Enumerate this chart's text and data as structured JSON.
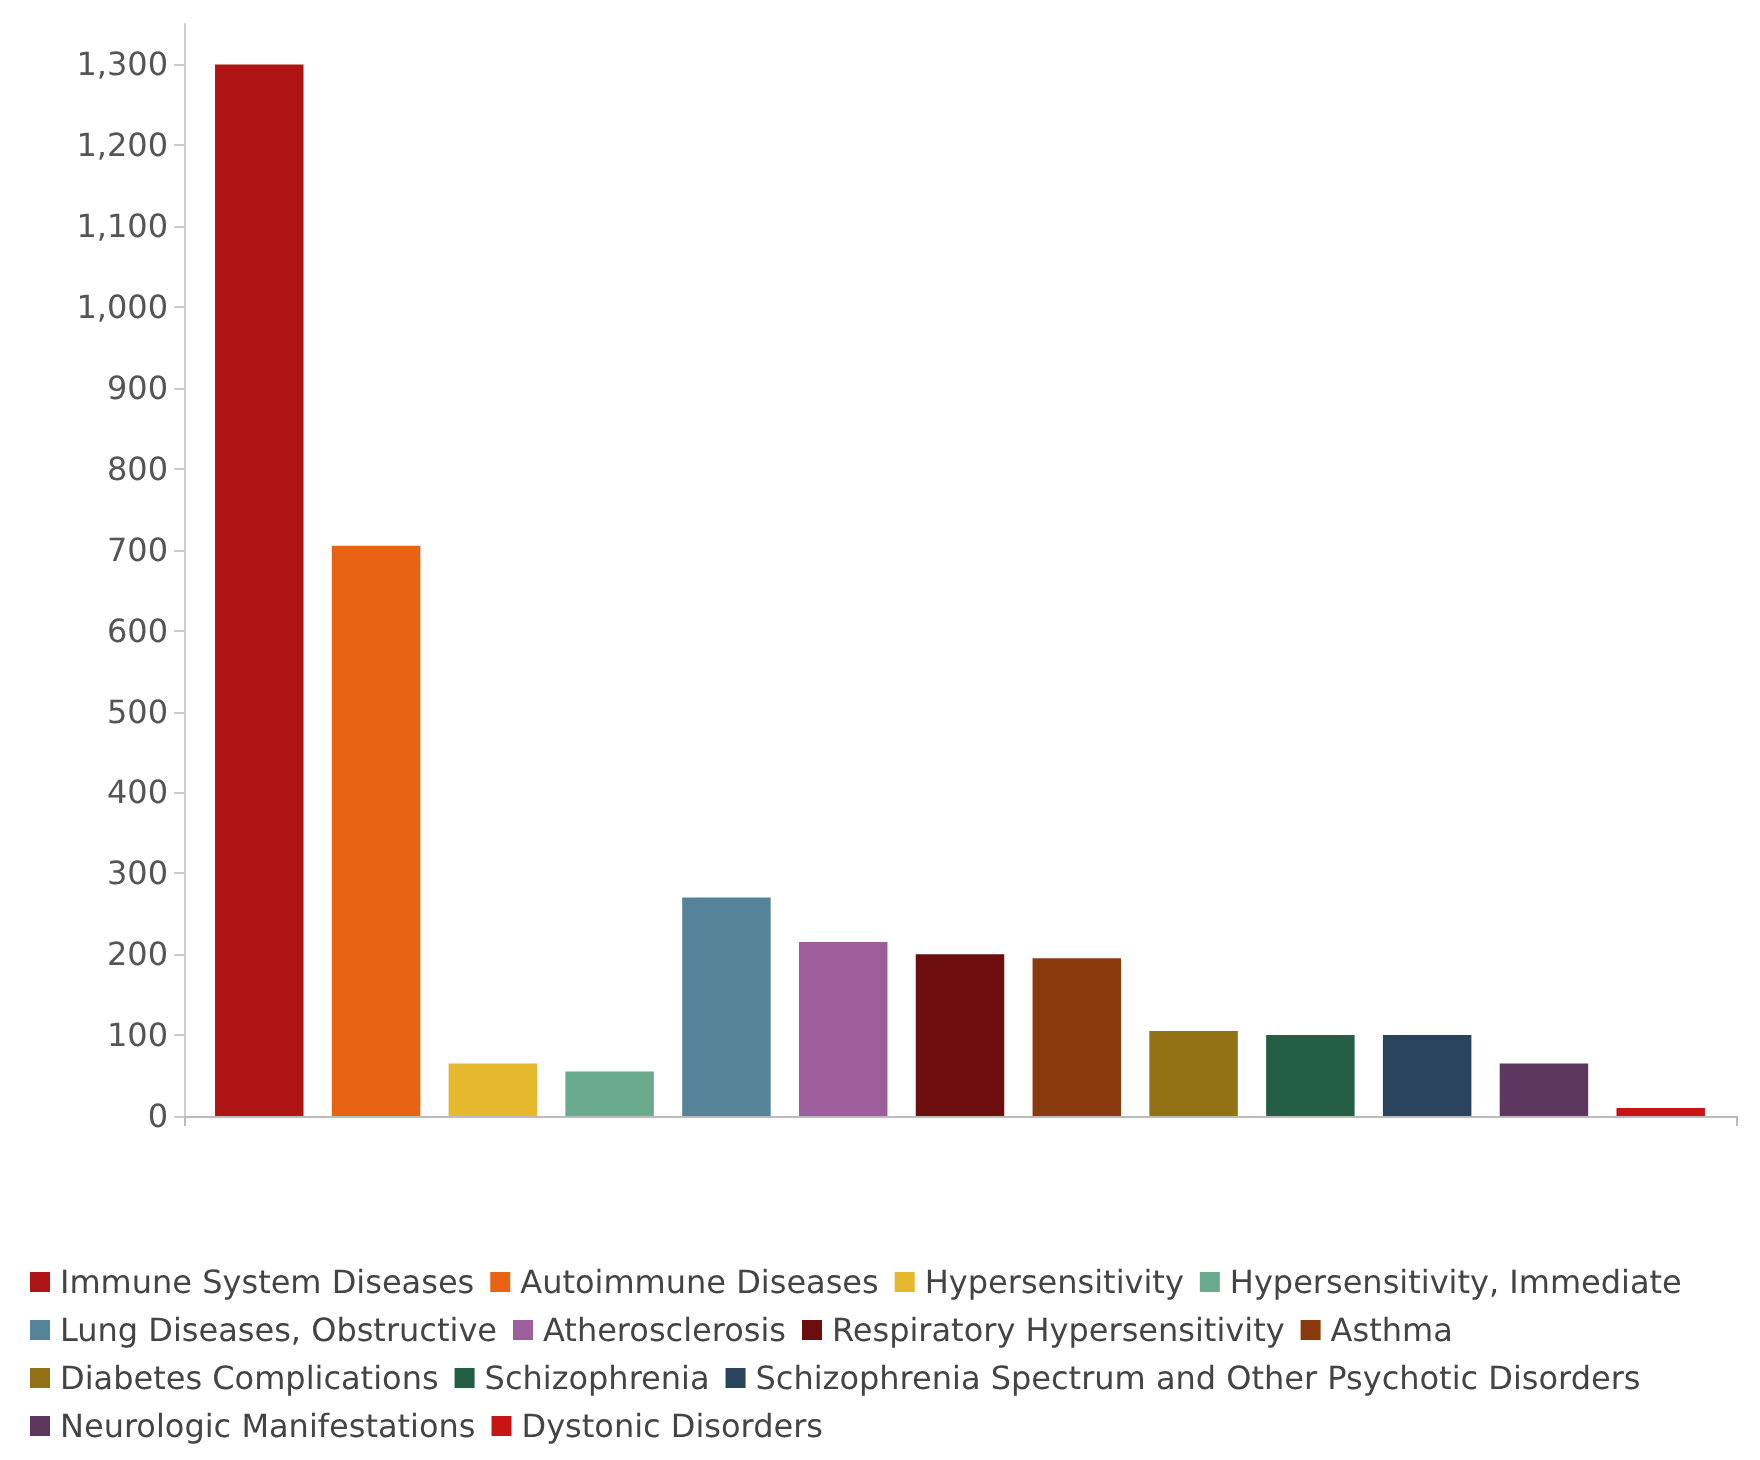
{
  "chart_data": {
    "type": "bar",
    "categories": [
      null
    ],
    "series": [
      {
        "name": "Immune System Diseases",
        "color": "#ae1414",
        "values": [
          1300
        ]
      },
      {
        "name": "Autoimmune Diseases",
        "color": "#e86314",
        "values": [
          705
        ]
      },
      {
        "name": "Hypersensitivity",
        "color": "#e6b82e",
        "values": [
          65
        ]
      },
      {
        "name": "Hypersensitivity, Immediate",
        "color": "#6aab8e",
        "values": [
          55
        ]
      },
      {
        "name": "Lung Diseases, Obstructive",
        "color": "#558499",
        "values": [
          270
        ]
      },
      {
        "name": "Atherosclerosis",
        "color": "#9e5e9b",
        "values": [
          215
        ]
      },
      {
        "name": "Respiratory Hypersensitivity",
        "color": "#6c0e0e",
        "values": [
          200
        ]
      },
      {
        "name": "Asthma",
        "color": "#8b3a0e",
        "values": [
          195
        ]
      },
      {
        "name": "Diabetes Complications",
        "color": "#927214",
        "values": [
          105
        ]
      },
      {
        "name": "Schizophrenia",
        "color": "#235e45",
        "values": [
          100
        ]
      },
      {
        "name": "Schizophrenia Spectrum and Other Psychotic Disorders",
        "color": "#2b445e",
        "values": [
          100
        ]
      },
      {
        "name": "Neurologic Manifestations",
        "color": "#5e375e",
        "values": [
          65
        ]
      },
      {
        "name": "Dystonic Disorders",
        "color": "#c81414",
        "values": [
          10
        ]
      }
    ],
    "ylim": [
      0,
      1350
    ],
    "yticks": [
      0,
      100,
      200,
      300,
      400,
      500,
      600,
      700,
      800,
      900,
      {
        "value": 1000,
        "label": "1,000"
      },
      {
        "value": 1100,
        "label": "1,100"
      },
      {
        "value": 1200,
        "label": "1,200"
      },
      {
        "value": 1300,
        "label": "1,300"
      }
    ],
    "grid": false,
    "legend": "bottom"
  }
}
